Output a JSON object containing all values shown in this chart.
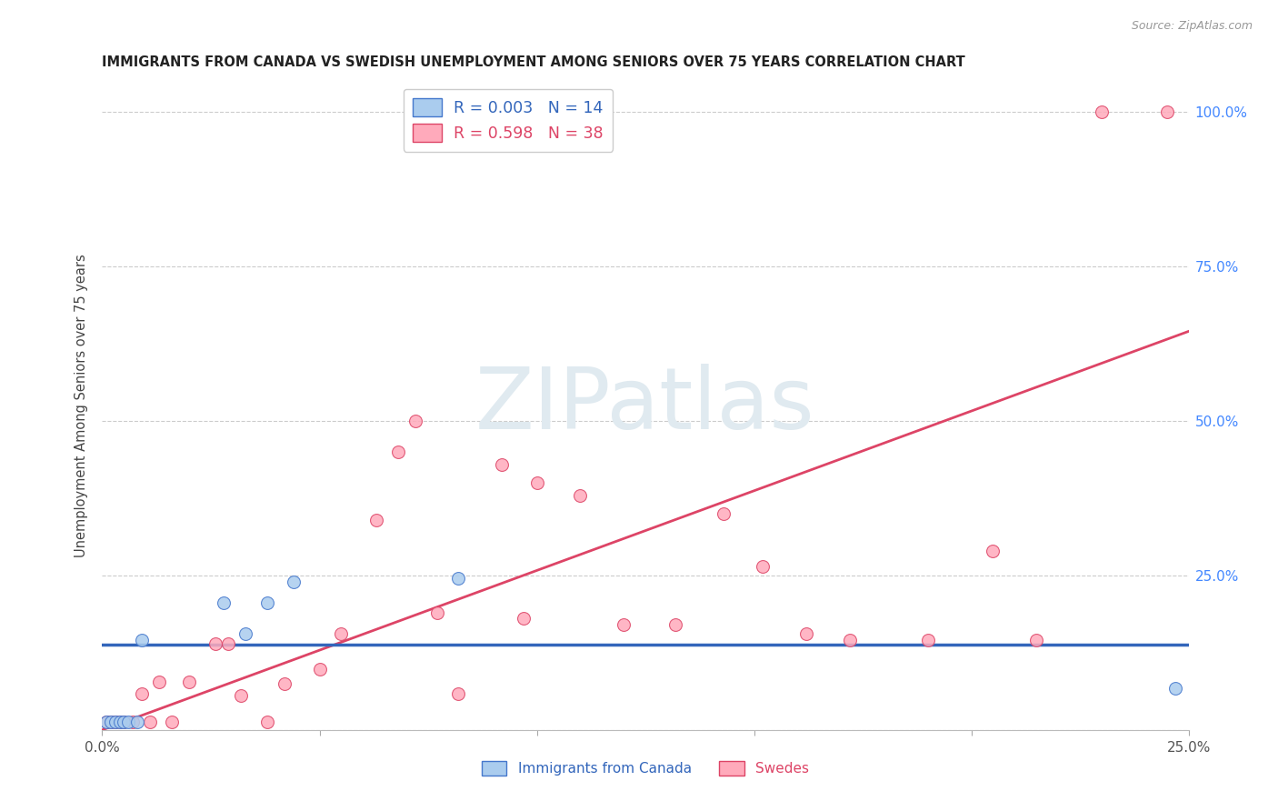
{
  "title": "IMMIGRANTS FROM CANADA VS SWEDISH UNEMPLOYMENT AMONG SENIORS OVER 75 YEARS CORRELATION CHART",
  "source": "Source: ZipAtlas.com",
  "ylabel": "Unemployment Among Seniors over 75 years",
  "legend1_label": "Immigrants from Canada",
  "legend2_label": "Swedes",
  "xlim": [
    0.0,
    0.25
  ],
  "ylim": [
    0.0,
    1.05
  ],
  "color_blue": "#AACCEE",
  "color_pink": "#FFAABB",
  "color_blue_edge": "#4477CC",
  "color_pink_edge": "#DD4466",
  "color_blue_line": "#3366BB",
  "color_pink_line": "#DD4466",
  "legend_text_blue": "R = 0.003   N = 14",
  "legend_text_pink": "R = 0.598   N = 38",
  "blue_x": [
    0.001,
    0.002,
    0.003,
    0.004,
    0.005,
    0.006,
    0.008,
    0.009,
    0.028,
    0.033,
    0.038,
    0.044,
    0.082,
    0.247
  ],
  "blue_y": [
    0.013,
    0.013,
    0.013,
    0.013,
    0.013,
    0.013,
    0.013,
    0.145,
    0.205,
    0.155,
    0.205,
    0.24,
    0.245,
    0.068
  ],
  "pink_x": [
    0.001,
    0.002,
    0.003,
    0.004,
    0.005,
    0.007,
    0.009,
    0.011,
    0.013,
    0.016,
    0.02,
    0.026,
    0.029,
    0.032,
    0.038,
    0.042,
    0.05,
    0.055,
    0.063,
    0.068,
    0.072,
    0.077,
    0.082,
    0.092,
    0.097,
    0.1,
    0.11,
    0.12,
    0.132,
    0.143,
    0.152,
    0.162,
    0.172,
    0.19,
    0.205,
    0.215,
    0.23,
    0.245
  ],
  "pink_y": [
    0.013,
    0.013,
    0.013,
    0.013,
    0.013,
    0.013,
    0.058,
    0.013,
    0.078,
    0.013,
    0.078,
    0.14,
    0.14,
    0.055,
    0.013,
    0.075,
    0.098,
    0.155,
    0.34,
    0.45,
    0.5,
    0.19,
    0.058,
    0.43,
    0.18,
    0.4,
    0.38,
    0.17,
    0.17,
    0.35,
    0.265,
    0.155,
    0.145,
    0.145,
    0.29,
    0.145,
    1.0,
    1.0
  ],
  "pink_line_x": [
    0.0,
    0.25
  ],
  "pink_line_y": [
    0.0,
    0.645
  ],
  "blue_line_x": [
    0.0,
    0.25
  ],
  "blue_line_y": [
    0.138,
    0.138
  ],
  "watermark_text": "ZIPatlas",
  "right_ytick_labels": [
    "",
    "25.0%",
    "50.0%",
    "75.0%",
    "100.0%"
  ],
  "right_yticks": [
    0.0,
    0.25,
    0.5,
    0.75,
    1.0
  ],
  "xtick_labels": [
    "0.0%",
    "",
    "",
    "",
    "",
    "25.0%"
  ],
  "xticks": [
    0.0,
    0.05,
    0.1,
    0.15,
    0.2,
    0.25
  ]
}
